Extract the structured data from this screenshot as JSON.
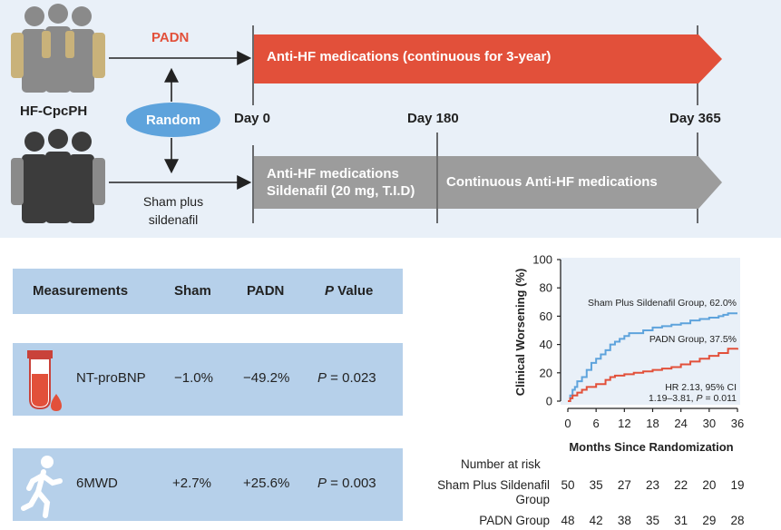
{
  "design": {
    "groups": {
      "top_label": "PADN",
      "left_label": "HF-CpcPH",
      "random_label": "Random",
      "bottom_label_line1": "Sham plus",
      "bottom_label_line2": "sildenafil"
    },
    "timeline": {
      "day0": "Day 0",
      "day180": "Day 180",
      "day365": "Day 365"
    },
    "arms": {
      "padn_bar": "Anti-HF medications (continuous for 3-year)",
      "sham_bar_first_line1": "Anti-HF medications",
      "sham_bar_first_line2": "Sildenafil (20 mg, T.I.D)",
      "sham_bar_second": "Continuous Anti-HF medications"
    },
    "colors": {
      "padn_red": "#e2503a",
      "sham_gray": "#9c9c9c",
      "random_blue": "#5ea3dc",
      "people_gray": "#8a8a8a",
      "people_tan": "#c9b27a",
      "people_dark": "#3c3c3c"
    }
  },
  "table": {
    "headers": {
      "measurements": "Measurements",
      "sham": "Sham",
      "padn": "PADN",
      "p_value": "P Value"
    },
    "rows": [
      {
        "icon": "blood-tube-icon",
        "name": "NT-proBNP",
        "sham": "−1.0%",
        "padn": "−49.2%",
        "p_prefix": "P",
        "p_rest": " = 0.023"
      },
      {
        "icon": "walking-person-icon",
        "name": "6MWD",
        "sham": "+2.7%",
        "padn": "+25.6%",
        "p_prefix": "P",
        "p_rest": " = 0.003"
      }
    ]
  },
  "chart_data": {
    "type": "line",
    "title": "",
    "xlabel": "Months Since Randomization",
    "ylabel": "Clinical Worsening (%)",
    "xlim": [
      0,
      36
    ],
    "ylim": [
      0,
      100
    ],
    "xticks": [
      0,
      6,
      12,
      18,
      24,
      30,
      36
    ],
    "yticks": [
      0,
      20,
      40,
      60,
      80,
      100
    ],
    "series": [
      {
        "name": "Sham Plus Sildenafil Group, 62.0%",
        "color": "#5ea3dc",
        "x": [
          0,
          0.5,
          1,
          1.5,
          2,
          3,
          4,
          5,
          6,
          7,
          8,
          9,
          10,
          11,
          12,
          13,
          14,
          16,
          18,
          20,
          22,
          24,
          26,
          28,
          30,
          32,
          33,
          34,
          36
        ],
        "y": [
          0,
          4,
          8,
          10,
          14,
          17,
          22,
          27,
          30,
          33,
          36,
          40,
          42,
          44,
          46,
          48,
          48,
          50,
          52,
          53,
          54,
          55,
          57,
          58,
          59,
          60,
          61,
          62,
          62
        ]
      },
      {
        "name": "PADN Group, 37.5%",
        "color": "#e2503a",
        "x": [
          0,
          0.5,
          1,
          2,
          3,
          4,
          6,
          8,
          9,
          10,
          12,
          14,
          16,
          18,
          20,
          22,
          24,
          26,
          28,
          30,
          32,
          34,
          36
        ],
        "y": [
          0,
          2,
          4,
          6,
          8,
          10,
          12,
          15,
          17,
          18,
          19,
          20,
          21,
          22,
          23,
          24,
          26,
          28,
          30,
          32,
          34,
          37,
          37.5
        ]
      }
    ],
    "annotation": {
      "line1": "HR 2.13, 95% CI",
      "line2_pre": "1.19–3.81, ",
      "line2_p": "P",
      "line2_post": " = 0.011"
    },
    "risk_table": {
      "title": "Number at risk",
      "rows": [
        {
          "label_line1": "Sham Plus Sildenafil",
          "label_line2": "Group",
          "values": [
            50,
            35,
            27,
            23,
            22,
            20,
            19
          ]
        },
        {
          "label_line1": "PADN Group",
          "label_line2": "",
          "values": [
            48,
            42,
            38,
            35,
            31,
            29,
            28
          ]
        }
      ]
    }
  }
}
